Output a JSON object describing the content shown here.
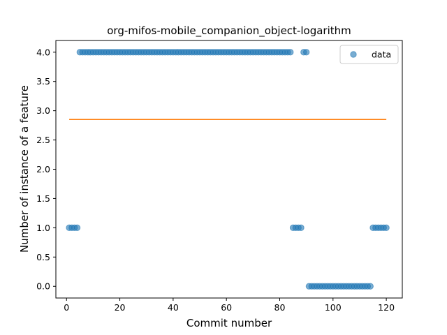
{
  "chart_data": {
    "type": "scatter",
    "title": "org-mifos-mobile_companion_object-logarithm",
    "xlabel": "Commit number",
    "ylabel": "Number of instance of a feature",
    "xlim": [
      -4,
      126
    ],
    "ylim": [
      -0.2,
      4.2
    ],
    "xticks": [
      0,
      20,
      40,
      60,
      80,
      100,
      120
    ],
    "yticks": [
      "0.0",
      "0.5",
      "1.0",
      "1.5",
      "2.0",
      "2.5",
      "3.0",
      "3.5",
      "4.0"
    ],
    "legend": {
      "position": "top-right",
      "entries": [
        "data"
      ]
    },
    "grid": false,
    "colors": {
      "data": "#1f77b4",
      "fit": "#ff7f0e"
    },
    "series": [
      {
        "name": "data",
        "kind": "scatter",
        "points": [
          [
            1,
            1
          ],
          [
            2,
            1
          ],
          [
            3,
            1
          ],
          [
            4,
            1
          ],
          [
            5,
            4
          ],
          [
            6,
            4
          ],
          [
            7,
            4
          ],
          [
            8,
            4
          ],
          [
            9,
            4
          ],
          [
            10,
            4
          ],
          [
            11,
            4
          ],
          [
            12,
            4
          ],
          [
            13,
            4
          ],
          [
            14,
            4
          ],
          [
            15,
            4
          ],
          [
            16,
            4
          ],
          [
            17,
            4
          ],
          [
            18,
            4
          ],
          [
            19,
            4
          ],
          [
            20,
            4
          ],
          [
            21,
            4
          ],
          [
            22,
            4
          ],
          [
            23,
            4
          ],
          [
            24,
            4
          ],
          [
            25,
            4
          ],
          [
            26,
            4
          ],
          [
            27,
            4
          ],
          [
            28,
            4
          ],
          [
            29,
            4
          ],
          [
            30,
            4
          ],
          [
            31,
            4
          ],
          [
            32,
            4
          ],
          [
            33,
            4
          ],
          [
            34,
            4
          ],
          [
            35,
            4
          ],
          [
            36,
            4
          ],
          [
            37,
            4
          ],
          [
            38,
            4
          ],
          [
            39,
            4
          ],
          [
            40,
            4
          ],
          [
            41,
            4
          ],
          [
            42,
            4
          ],
          [
            43,
            4
          ],
          [
            44,
            4
          ],
          [
            45,
            4
          ],
          [
            46,
            4
          ],
          [
            47,
            4
          ],
          [
            48,
            4
          ],
          [
            49,
            4
          ],
          [
            50,
            4
          ],
          [
            51,
            4
          ],
          [
            52,
            4
          ],
          [
            53,
            4
          ],
          [
            54,
            4
          ],
          [
            55,
            4
          ],
          [
            56,
            4
          ],
          [
            57,
            4
          ],
          [
            58,
            4
          ],
          [
            59,
            4
          ],
          [
            60,
            4
          ],
          [
            61,
            4
          ],
          [
            62,
            4
          ],
          [
            63,
            4
          ],
          [
            64,
            4
          ],
          [
            65,
            4
          ],
          [
            66,
            4
          ],
          [
            67,
            4
          ],
          [
            68,
            4
          ],
          [
            69,
            4
          ],
          [
            70,
            4
          ],
          [
            71,
            4
          ],
          [
            72,
            4
          ],
          [
            73,
            4
          ],
          [
            74,
            4
          ],
          [
            75,
            4
          ],
          [
            76,
            4
          ],
          [
            77,
            4
          ],
          [
            78,
            4
          ],
          [
            79,
            4
          ],
          [
            80,
            4
          ],
          [
            81,
            4
          ],
          [
            82,
            4
          ],
          [
            83,
            4
          ],
          [
            84,
            4
          ],
          [
            85,
            1
          ],
          [
            86,
            1
          ],
          [
            87,
            1
          ],
          [
            88,
            1
          ],
          [
            89,
            4
          ],
          [
            90,
            4
          ],
          [
            91,
            0
          ],
          [
            92,
            0
          ],
          [
            93,
            0
          ],
          [
            94,
            0
          ],
          [
            95,
            0
          ],
          [
            96,
            0
          ],
          [
            97,
            0
          ],
          [
            98,
            0
          ],
          [
            99,
            0
          ],
          [
            100,
            0
          ],
          [
            101,
            0
          ],
          [
            102,
            0
          ],
          [
            103,
            0
          ],
          [
            104,
            0
          ],
          [
            105,
            0
          ],
          [
            106,
            0
          ],
          [
            107,
            0
          ],
          [
            108,
            0
          ],
          [
            109,
            0
          ],
          [
            110,
            0
          ],
          [
            111,
            0
          ],
          [
            112,
            0
          ],
          [
            113,
            0
          ],
          [
            114,
            0
          ],
          [
            115,
            1
          ],
          [
            116,
            1
          ],
          [
            117,
            1
          ],
          [
            118,
            1
          ],
          [
            119,
            1
          ],
          [
            120,
            1
          ]
        ]
      },
      {
        "name": "",
        "kind": "line",
        "points": [
          [
            1,
            2.85
          ],
          [
            120,
            2.85
          ]
        ]
      }
    ]
  }
}
